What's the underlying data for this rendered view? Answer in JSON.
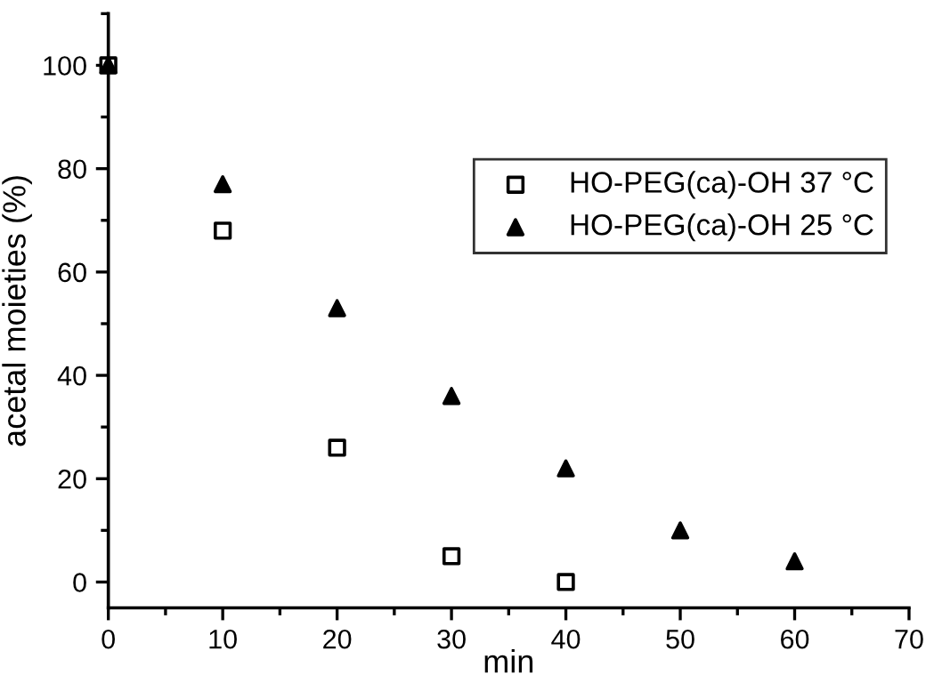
{
  "chart_data": {
    "type": "scatter",
    "xlabel": "min",
    "ylabel": "acetal moieties (%)",
    "series": [
      {
        "name": "HO-PEG(ca)-OH 37 °C",
        "color": "#000000",
        "marker": "square",
        "x": [
          0,
          10,
          20,
          30,
          40
        ],
        "values": [
          100,
          68,
          26,
          5,
          0
        ]
      },
      {
        "name": "HO-PEG(ca)-OH 25 °C",
        "color": "#000000",
        "marker": "triangle",
        "x": [
          0,
          10,
          20,
          30,
          40,
          50,
          60
        ],
        "values": [
          100,
          77,
          53,
          36,
          22,
          10,
          4
        ]
      }
    ],
    "xlim": [
      0,
      70
    ],
    "xticks": [
      0,
      10,
      20,
      30,
      40,
      50,
      60,
      70
    ],
    "ylim": [
      -5,
      110
    ],
    "yticks": [
      0,
      20,
      40,
      60,
      80,
      100
    ],
    "grid": false,
    "legend": "top right"
  }
}
